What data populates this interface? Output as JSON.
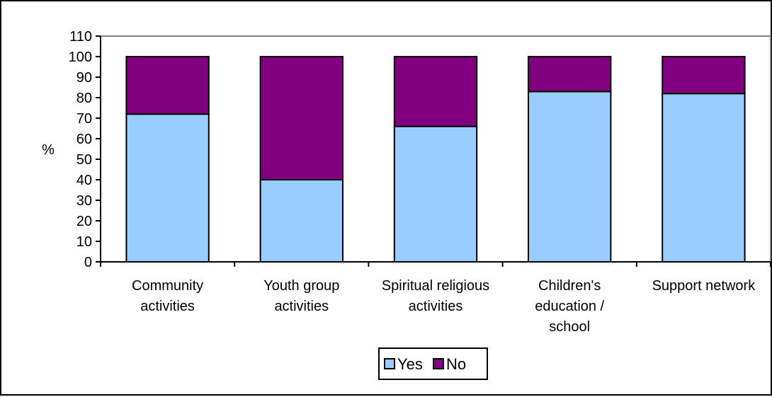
{
  "chart_data": {
    "type": "bar",
    "stacked": true,
    "categories": [
      [
        "Community",
        "activities"
      ],
      [
        "Youth group",
        "activities"
      ],
      [
        "Spiritual religious",
        "activities"
      ],
      [
        "Children's",
        "education /",
        "school"
      ],
      [
        "Support network"
      ]
    ],
    "series": [
      {
        "name": "Yes",
        "color": "#99ccff",
        "values": [
          72,
          40,
          66,
          83,
          82
        ]
      },
      {
        "name": "No",
        "color": "#800080",
        "values": [
          28,
          60,
          34,
          17,
          18
        ]
      }
    ],
    "ylabel": "%",
    "ylim": [
      0,
      110
    ],
    "yticks": [
      0,
      10,
      20,
      30,
      40,
      50,
      60,
      70,
      80,
      90,
      100,
      110
    ],
    "legend": "bottom",
    "plot_border_color": "#808080",
    "grid": false
  }
}
